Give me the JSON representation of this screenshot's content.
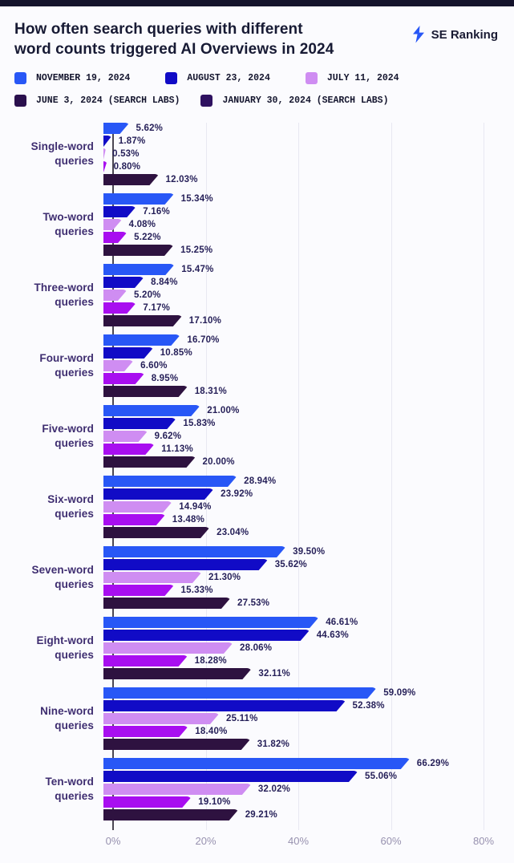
{
  "header": {
    "title_lines": [
      "How often search queries with different",
      "word counts triggered AI Overviews in 2024"
    ],
    "brand_name": "SE Ranking"
  },
  "legend": {
    "items": [
      {
        "label": "NOVEMBER 19, 2024",
        "color": "#2857F6"
      },
      {
        "label": "AUGUST 23, 2024",
        "color": "#110BC6"
      },
      {
        "label": "JULY 11, 2024",
        "color": "#CF8DF2"
      },
      {
        "label": "JUNE 3, 2024 (SEARCH LABS)",
        "color": "#2A0F4D"
      },
      {
        "label": "JANUARY 30, 2024 (SEARCH LABS)",
        "color": "#2E1160"
      }
    ]
  },
  "chart_data": {
    "type": "bar",
    "orientation": "horizontal",
    "title": "How often search queries with different word counts triggered AI Overviews in 2024",
    "categories": [
      "Single-word queries",
      "Two-word queries",
      "Three-word queries",
      "Four-word queries",
      "Five-word queries",
      "Six-word queries",
      "Seven-word queries",
      "Eight-word queries",
      "Nine-word queries",
      "Ten-word queries"
    ],
    "series": [
      {
        "name": "November 19, 2024",
        "color": "#2857F6",
        "values": [
          5.62,
          15.34,
          15.47,
          16.7,
          21.0,
          28.94,
          39.5,
          46.61,
          59.09,
          66.29
        ]
      },
      {
        "name": "August 23, 2024",
        "color": "#110BC6",
        "values": [
          1.87,
          7.16,
          8.84,
          10.85,
          15.83,
          23.92,
          35.62,
          44.63,
          52.38,
          55.06
        ]
      },
      {
        "name": "July 11, 2024",
        "color": "#CF8DF2",
        "values": [
          0.53,
          4.08,
          5.2,
          6.6,
          9.62,
          14.94,
          21.3,
          28.06,
          25.11,
          32.02
        ]
      },
      {
        "name": "June 3, 2024 (Search Labs)",
        "color": "#A80EF0",
        "values": [
          0.8,
          5.22,
          7.17,
          8.95,
          11.13,
          13.48,
          15.33,
          18.28,
          18.4,
          19.1
        ]
      },
      {
        "name": "January 30, 2024 (Search Labs)",
        "color": "#2E1240",
        "values": [
          12.03,
          15.25,
          17.1,
          18.31,
          20.0,
          23.04,
          27.53,
          32.11,
          31.82,
          29.21
        ]
      }
    ],
    "xlim": [
      0,
      80
    ],
    "x_tick_labels": [
      "0%",
      "20%",
      "40%",
      "60%",
      "80%"
    ],
    "grid": "vertical",
    "legend_position": "top",
    "value_label_suffix": "%"
  },
  "colors": {
    "top_bar": "#14132B",
    "background": "#FBFBFE",
    "axis_line": "#4B4753",
    "gridline": "#E8E8F2",
    "tick_label": "#9791AF",
    "value_label": "#251F58",
    "category_label": "#3E2D70",
    "title": "#171A34",
    "brand_blue": "#2857F6"
  }
}
